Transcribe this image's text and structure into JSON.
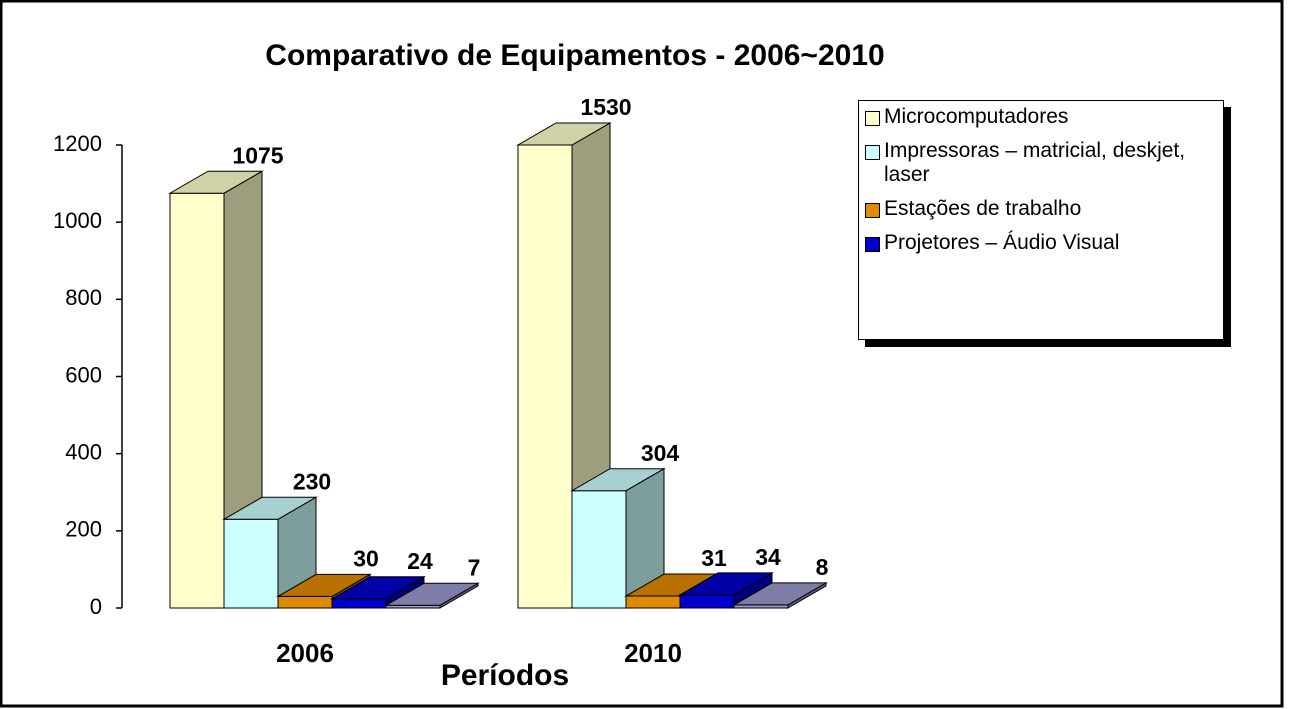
{
  "chart_data": {
    "type": "bar3d",
    "title": "Comparativo de  Equipamentos - 2006~2010",
    "x_label": "Períodos",
    "categories": [
      "2006",
      "2010"
    ],
    "series": [
      {
        "name": "Microcomputadores",
        "color": "#ffffcc",
        "values": [
          1075,
          1530
        ]
      },
      {
        "name": "Impressoras – matricial, deskjet, laser",
        "color": "#ccffff",
        "values": [
          230,
          304
        ]
      },
      {
        "name": "Estações de trabalho",
        "color": "#e08a00",
        "values": [
          30,
          31
        ]
      },
      {
        "name": "Projetores – Áudio Visual",
        "color": "#0000cc",
        "values": [
          24,
          34
        ]
      },
      {
        "color": "#9999cc",
        "values": [
          7,
          8
        ]
      }
    ],
    "ylim": [
      0,
      1200
    ],
    "yticks": [
      0,
      200,
      400,
      600,
      800,
      1000,
      1200
    ]
  }
}
